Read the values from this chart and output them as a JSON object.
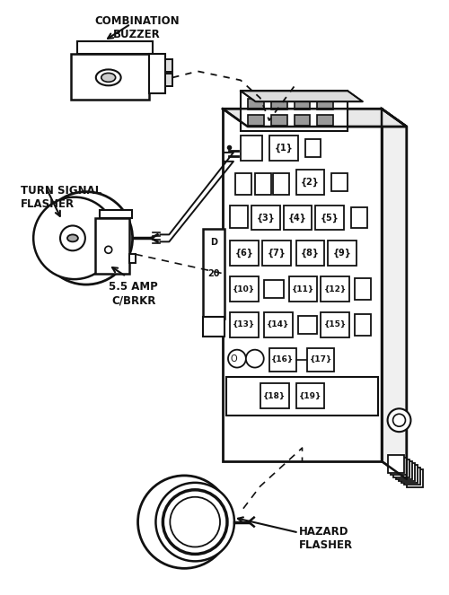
{
  "bg_color": "#ffffff",
  "line_color": "#111111",
  "fig_width": 5.0,
  "fig_height": 6.63,
  "dpi": 100,
  "labels": {
    "combination_buzzer": "COMBINATION\nBUZZER",
    "turn_signal_flasher": "TURN SIGNAL\nFLASHER",
    "hazard_flasher": "HAZARD\nFLASHER",
    "cbrkr": "5.5 AMP\nC/BRKR"
  }
}
